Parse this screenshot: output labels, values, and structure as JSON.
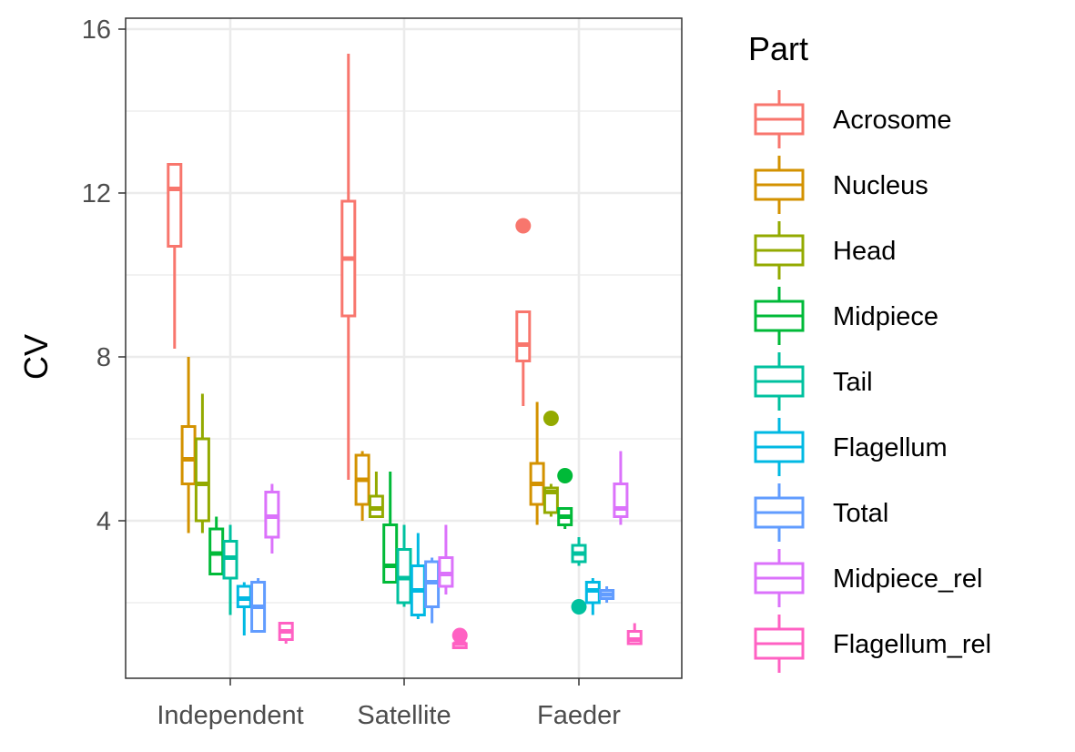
{
  "chart_data": {
    "type": "boxplot",
    "title": "",
    "xlabel": "",
    "ylabel": "CV",
    "ylim": [
      0,
      16
    ],
    "yticks": [
      4,
      8,
      12,
      16
    ],
    "grid": true,
    "legend": {
      "title": "Part",
      "position": "right"
    },
    "categories": [
      "Independent",
      "Satellite",
      "Faeder"
    ],
    "colors": {
      "Acrosome": "#F8766D",
      "Nucleus": "#D39200",
      "Head": "#93AA00",
      "Midpiece": "#00BA38",
      "Tail": "#00C19F",
      "Flagellum": "#00B9E3",
      "Total": "#619CFF",
      "Midpiece_rel": "#DB72FB",
      "Flagellum_rel": "#FF61C3"
    },
    "series": [
      {
        "name": "Acrosome",
        "boxes": [
          {
            "min": 8.2,
            "q1": 10.7,
            "median": 12.1,
            "q3": 12.7,
            "max": 12.7,
            "outliers": []
          },
          {
            "min": 5.0,
            "q1": 9.0,
            "median": 10.4,
            "q3": 11.8,
            "max": 15.4,
            "outliers": []
          },
          {
            "min": 6.8,
            "q1": 7.9,
            "median": 8.3,
            "q3": 9.1,
            "max": 9.1,
            "outliers": [
              11.2
            ]
          }
        ]
      },
      {
        "name": "Nucleus",
        "boxes": [
          {
            "min": 3.7,
            "q1": 4.9,
            "median": 5.5,
            "q3": 6.3,
            "max": 8.0,
            "outliers": []
          },
          {
            "min": 4.0,
            "q1": 4.4,
            "median": 5.0,
            "q3": 5.6,
            "max": 5.7,
            "outliers": []
          },
          {
            "min": 3.9,
            "q1": 4.4,
            "median": 4.9,
            "q3": 5.4,
            "max": 6.9,
            "outliers": []
          }
        ]
      },
      {
        "name": "Head",
        "boxes": [
          {
            "min": 3.7,
            "q1": 4.0,
            "median": 4.9,
            "q3": 6.0,
            "max": 7.1,
            "outliers": []
          },
          {
            "min": 4.1,
            "q1": 4.1,
            "median": 4.3,
            "q3": 4.6,
            "max": 5.2,
            "outliers": []
          },
          {
            "min": 4.1,
            "q1": 4.2,
            "median": 4.7,
            "q3": 4.8,
            "max": 4.9,
            "outliers": [
              6.5
            ]
          }
        ]
      },
      {
        "name": "Midpiece",
        "boxes": [
          {
            "min": 2.7,
            "q1": 2.7,
            "median": 3.2,
            "q3": 3.8,
            "max": 4.1,
            "outliers": []
          },
          {
            "min": 2.5,
            "q1": 2.5,
            "median": 2.9,
            "q3": 3.9,
            "max": 5.2,
            "outliers": []
          },
          {
            "min": 3.8,
            "q1": 3.9,
            "median": 4.1,
            "q3": 4.3,
            "max": 4.3,
            "outliers": [
              5.1
            ]
          }
        ]
      },
      {
        "name": "Tail",
        "boxes": [
          {
            "min": 1.7,
            "q1": 2.6,
            "median": 3.1,
            "q3": 3.5,
            "max": 3.9,
            "outliers": []
          },
          {
            "min": 1.9,
            "q1": 2.0,
            "median": 2.6,
            "q3": 3.3,
            "max": 3.9,
            "outliers": []
          },
          {
            "min": 2.9,
            "q1": 3.0,
            "median": 3.2,
            "q3": 3.4,
            "max": 3.6,
            "outliers": [
              1.9
            ]
          }
        ]
      },
      {
        "name": "Flagellum",
        "boxes": [
          {
            "min": 1.2,
            "q1": 1.9,
            "median": 2.1,
            "q3": 2.4,
            "max": 2.5,
            "outliers": []
          },
          {
            "min": 1.6,
            "q1": 1.7,
            "median": 2.3,
            "q3": 2.9,
            "max": 3.7,
            "outliers": []
          },
          {
            "min": 1.7,
            "q1": 2.0,
            "median": 2.3,
            "q3": 2.5,
            "max": 2.6,
            "outliers": []
          }
        ]
      },
      {
        "name": "Total",
        "boxes": [
          {
            "min": 1.3,
            "q1": 1.3,
            "median": 1.9,
            "q3": 2.5,
            "max": 2.6,
            "outliers": []
          },
          {
            "min": 1.5,
            "q1": 1.9,
            "median": 2.5,
            "q3": 3.0,
            "max": 3.1,
            "outliers": []
          },
          {
            "min": 2.0,
            "q1": 2.1,
            "median": 2.2,
            "q3": 2.3,
            "max": 2.4,
            "outliers": []
          }
        ]
      },
      {
        "name": "Midpiece_rel",
        "boxes": [
          {
            "min": 3.2,
            "q1": 3.6,
            "median": 4.1,
            "q3": 4.7,
            "max": 4.9,
            "outliers": []
          },
          {
            "min": 2.2,
            "q1": 2.4,
            "median": 2.7,
            "q3": 3.1,
            "max": 3.9,
            "outliers": []
          },
          {
            "min": 3.9,
            "q1": 4.1,
            "median": 4.3,
            "q3": 4.9,
            "max": 5.7,
            "outliers": []
          }
        ]
      },
      {
        "name": "Flagellum_rel",
        "boxes": [
          {
            "min": 1.0,
            "q1": 1.1,
            "median": 1.3,
            "q3": 1.5,
            "max": 1.5,
            "outliers": []
          },
          {
            "min": 0.9,
            "q1": 0.9,
            "median": 1.0,
            "q3": 1.0,
            "max": 1.1,
            "outliers": [
              1.2
            ]
          },
          {
            "min": 1.0,
            "q1": 1.0,
            "median": 1.1,
            "q3": 1.3,
            "max": 1.5,
            "outliers": []
          }
        ]
      }
    ]
  }
}
